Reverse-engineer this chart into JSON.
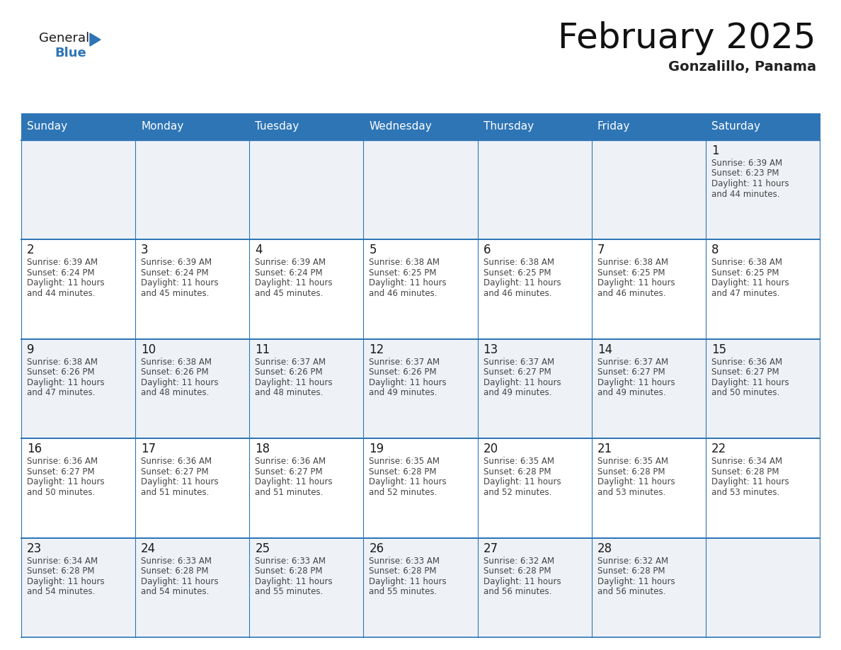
{
  "title": "February 2025",
  "subtitle": "Gonzalillo, Panama",
  "header_bg": "#2E75B6",
  "header_text_color": "#FFFFFF",
  "cell_bg_light": "#EEF2F7",
  "cell_bg_white": "#FFFFFF",
  "day_number_color": "#1a1a1a",
  "info_text_color": "#444444",
  "border_color": "#2E75B6",
  "days_of_week": [
    "Sunday",
    "Monday",
    "Tuesday",
    "Wednesday",
    "Thursday",
    "Friday",
    "Saturday"
  ],
  "weeks": [
    [
      null,
      null,
      null,
      null,
      null,
      null,
      1
    ],
    [
      2,
      3,
      4,
      5,
      6,
      7,
      8
    ],
    [
      9,
      10,
      11,
      12,
      13,
      14,
      15
    ],
    [
      16,
      17,
      18,
      19,
      20,
      21,
      22
    ],
    [
      23,
      24,
      25,
      26,
      27,
      28,
      null
    ]
  ],
  "day_data": {
    "1": {
      "sunrise": "6:39 AM",
      "sunset": "6:23 PM",
      "daylight": "11 hours and 44 minutes."
    },
    "2": {
      "sunrise": "6:39 AM",
      "sunset": "6:24 PM",
      "daylight": "11 hours and 44 minutes."
    },
    "3": {
      "sunrise": "6:39 AM",
      "sunset": "6:24 PM",
      "daylight": "11 hours and 45 minutes."
    },
    "4": {
      "sunrise": "6:39 AM",
      "sunset": "6:24 PM",
      "daylight": "11 hours and 45 minutes."
    },
    "5": {
      "sunrise": "6:38 AM",
      "sunset": "6:25 PM",
      "daylight": "11 hours and 46 minutes."
    },
    "6": {
      "sunrise": "6:38 AM",
      "sunset": "6:25 PM",
      "daylight": "11 hours and 46 minutes."
    },
    "7": {
      "sunrise": "6:38 AM",
      "sunset": "6:25 PM",
      "daylight": "11 hours and 46 minutes."
    },
    "8": {
      "sunrise": "6:38 AM",
      "sunset": "6:25 PM",
      "daylight": "11 hours and 47 minutes."
    },
    "9": {
      "sunrise": "6:38 AM",
      "sunset": "6:26 PM",
      "daylight": "11 hours and 47 minutes."
    },
    "10": {
      "sunrise": "6:38 AM",
      "sunset": "6:26 PM",
      "daylight": "11 hours and 48 minutes."
    },
    "11": {
      "sunrise": "6:37 AM",
      "sunset": "6:26 PM",
      "daylight": "11 hours and 48 minutes."
    },
    "12": {
      "sunrise": "6:37 AM",
      "sunset": "6:26 PM",
      "daylight": "11 hours and 49 minutes."
    },
    "13": {
      "sunrise": "6:37 AM",
      "sunset": "6:27 PM",
      "daylight": "11 hours and 49 minutes."
    },
    "14": {
      "sunrise": "6:37 AM",
      "sunset": "6:27 PM",
      "daylight": "11 hours and 49 minutes."
    },
    "15": {
      "sunrise": "6:36 AM",
      "sunset": "6:27 PM",
      "daylight": "11 hours and 50 minutes."
    },
    "16": {
      "sunrise": "6:36 AM",
      "sunset": "6:27 PM",
      "daylight": "11 hours and 50 minutes."
    },
    "17": {
      "sunrise": "6:36 AM",
      "sunset": "6:27 PM",
      "daylight": "11 hours and 51 minutes."
    },
    "18": {
      "sunrise": "6:36 AM",
      "sunset": "6:27 PM",
      "daylight": "11 hours and 51 minutes."
    },
    "19": {
      "sunrise": "6:35 AM",
      "sunset": "6:28 PM",
      "daylight": "11 hours and 52 minutes."
    },
    "20": {
      "sunrise": "6:35 AM",
      "sunset": "6:28 PM",
      "daylight": "11 hours and 52 minutes."
    },
    "21": {
      "sunrise": "6:35 AM",
      "sunset": "6:28 PM",
      "daylight": "11 hours and 53 minutes."
    },
    "22": {
      "sunrise": "6:34 AM",
      "sunset": "6:28 PM",
      "daylight": "11 hours and 53 minutes."
    },
    "23": {
      "sunrise": "6:34 AM",
      "sunset": "6:28 PM",
      "daylight": "11 hours and 54 minutes."
    },
    "24": {
      "sunrise": "6:33 AM",
      "sunset": "6:28 PM",
      "daylight": "11 hours and 54 minutes."
    },
    "25": {
      "sunrise": "6:33 AM",
      "sunset": "6:28 PM",
      "daylight": "11 hours and 55 minutes."
    },
    "26": {
      "sunrise": "6:33 AM",
      "sunset": "6:28 PM",
      "daylight": "11 hours and 55 minutes."
    },
    "27": {
      "sunrise": "6:32 AM",
      "sunset": "6:28 PM",
      "daylight": "11 hours and 56 minutes."
    },
    "28": {
      "sunrise": "6:32 AM",
      "sunset": "6:28 PM",
      "daylight": "11 hours and 56 minutes."
    }
  },
  "logo_text1": "General",
  "logo_text2": "Blue",
  "logo_color1": "#1a1a1a",
  "logo_color2": "#2E75B6",
  "logo_triangle_color": "#2E75B6",
  "title_fontsize": 36,
  "subtitle_fontsize": 14,
  "dow_fontsize": 11,
  "day_num_fontsize": 12,
  "info_fontsize": 8.5
}
